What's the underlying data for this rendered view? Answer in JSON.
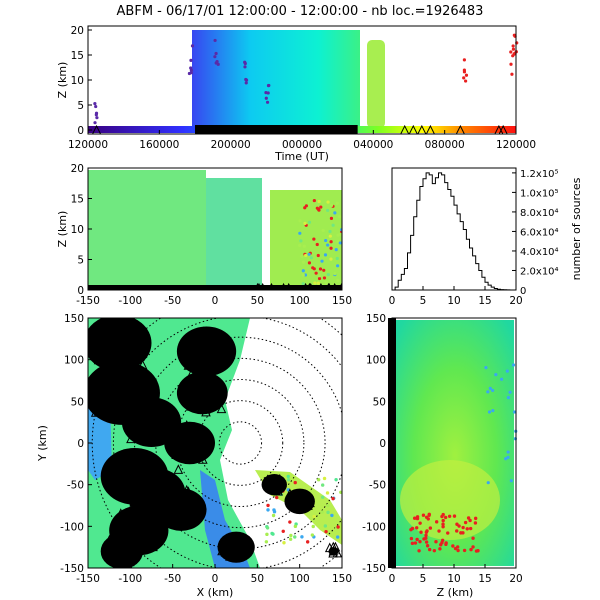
{
  "title": "ABFM - 06/17/01 12:00:00 - 12:00:00 - nb loc.=1926483",
  "colors": {
    "strike_marker": "#000000",
    "range_ring": "#000000"
  },
  "chart_data": [
    {
      "id": "time-height",
      "type": "scatter",
      "xlabel": "Time (UT)",
      "ylabel": "Z (km)",
      "x_tick_labels": [
        "120000",
        "160000",
        "200000",
        "000000",
        "040000",
        "080000",
        "120000"
      ],
      "y_ticks": [
        0,
        5,
        10,
        15,
        20
      ],
      "ylim": [
        0,
        20
      ],
      "colormap": "rainbow by time",
      "series": [
        {
          "x": [
            0.02,
            0.24,
            0.3,
            0.37,
            0.42
          ],
          "z": [
            3,
            14,
            15,
            11,
            8
          ],
          "color": "#5a2aa8"
        },
        {
          "x": [
            0.23,
            0.62
          ],
          "z": [
            0,
            20
          ],
          "color": "gradient-blue-cyan-green",
          "kind": "dense band"
        },
        {
          "x": [
            0.69,
            0.74
          ],
          "z": [
            1,
            17
          ],
          "color": "#a8ee50",
          "kind": "dense band"
        },
        {
          "x": [
            0.88,
            0.99,
            1.0
          ],
          "z": [
            12,
            14,
            16
          ],
          "color": "#e82020"
        }
      ],
      "strike_triangles_x": [
        0.02,
        0.26,
        0.3,
        0.35,
        0.4,
        0.45,
        0.5,
        0.55,
        0.58,
        0.61,
        0.74,
        0.76,
        0.78,
        0.8,
        0.87,
        0.96,
        0.97
      ]
    },
    {
      "id": "x-height",
      "type": "scatter",
      "xlabel": "",
      "ylabel": "Z (km)",
      "x_ticks": [
        -150,
        -100,
        -50,
        0,
        50,
        100,
        150
      ],
      "y_ticks": [
        0,
        5,
        10,
        15,
        20
      ],
      "xlim": [
        -150,
        150
      ],
      "ylim": [
        0,
        20
      ]
    },
    {
      "id": "height-histogram",
      "type": "line",
      "xlabel": "",
      "ylabel": "number of sources",
      "x_ticks": [
        0,
        5,
        10,
        15,
        20
      ],
      "y_tick_labels": [
        "0",
        "2.0x10⁴",
        "4.0x10⁴",
        "6.0x10⁴",
        "8.0x10⁴",
        "1.0x10⁵",
        "1.2x10⁵"
      ],
      "xlim": [
        0,
        20
      ],
      "ylim": [
        0,
        125000
      ],
      "x": [
        0,
        0.5,
        1,
        1.5,
        2,
        2.5,
        3,
        3.5,
        4,
        4.5,
        5,
        5.5,
        6,
        6.5,
        7,
        7.5,
        8,
        8.5,
        9,
        9.5,
        10,
        10.5,
        11,
        11.5,
        12,
        12.5,
        13,
        13.5,
        14,
        14.5,
        15,
        15.5,
        16,
        16.5,
        17,
        17.5,
        18,
        18.5,
        19,
        19.5,
        20
      ],
      "values": [
        0,
        3000,
        10000,
        16000,
        22000,
        38000,
        56000,
        75000,
        92000,
        106000,
        114000,
        120000,
        118000,
        109000,
        115000,
        120000,
        118000,
        110000,
        103000,
        96000,
        87000,
        78000,
        70000,
        62000,
        52000,
        43000,
        35000,
        27000,
        20000,
        13000,
        8000,
        5000,
        3000,
        1500,
        800,
        400,
        200,
        100,
        0,
        0,
        0
      ]
    },
    {
      "id": "plan-view",
      "type": "scatter",
      "xlabel": "X (km)",
      "ylabel": "Y (km)",
      "x_ticks": [
        -150,
        -100,
        -50,
        0,
        50,
        100,
        150
      ],
      "y_ticks": [
        -150,
        -100,
        -50,
        0,
        50,
        100,
        150
      ],
      "xlim": [
        -150,
        150
      ],
      "ylim": [
        -150,
        150
      ],
      "range_rings_km": [
        25,
        50,
        75,
        100,
        125,
        150,
        175
      ]
    },
    {
      "id": "height-y",
      "type": "scatter",
      "xlabel": "Z (km)",
      "ylabel": "",
      "x_ticks": [
        0,
        5,
        10,
        15,
        20
      ],
      "y_ticks": [
        -150,
        -100,
        -50,
        0,
        50,
        100,
        150
      ],
      "xlim": [
        0,
        20
      ],
      "ylim": [
        -150,
        150
      ]
    }
  ]
}
